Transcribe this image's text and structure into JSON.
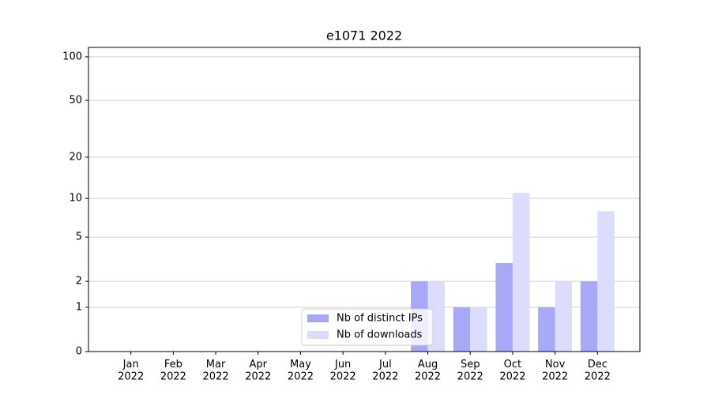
{
  "chart_data": {
    "type": "bar",
    "title": "e1071 2022",
    "categories": [
      "Jan\n2022",
      "Feb\n2022",
      "Mar\n2022",
      "Apr\n2022",
      "May\n2022",
      "Jun\n2022",
      "Jul\n2022",
      "Aug\n2022",
      "Sep\n2022",
      "Oct\n2022",
      "Nov\n2022",
      "Dec\n2022"
    ],
    "series": [
      {
        "name": "Nb of distinct IPs",
        "color": "#a8a8f8",
        "values": [
          0,
          0,
          0,
          0,
          0,
          0,
          0,
          2,
          1,
          3,
          1,
          2
        ]
      },
      {
        "name": "Nb of downloads",
        "color": "#dcdcfc",
        "values": [
          0,
          0,
          0,
          0,
          0,
          0,
          0,
          2,
          1,
          11,
          2,
          8
        ]
      }
    ],
    "yscale": "log1p",
    "ylim": [
      0,
      116
    ],
    "yticks": [
      0,
      1,
      2,
      5,
      10,
      20,
      50,
      100
    ],
    "grid": true,
    "legend": "lower center"
  }
}
